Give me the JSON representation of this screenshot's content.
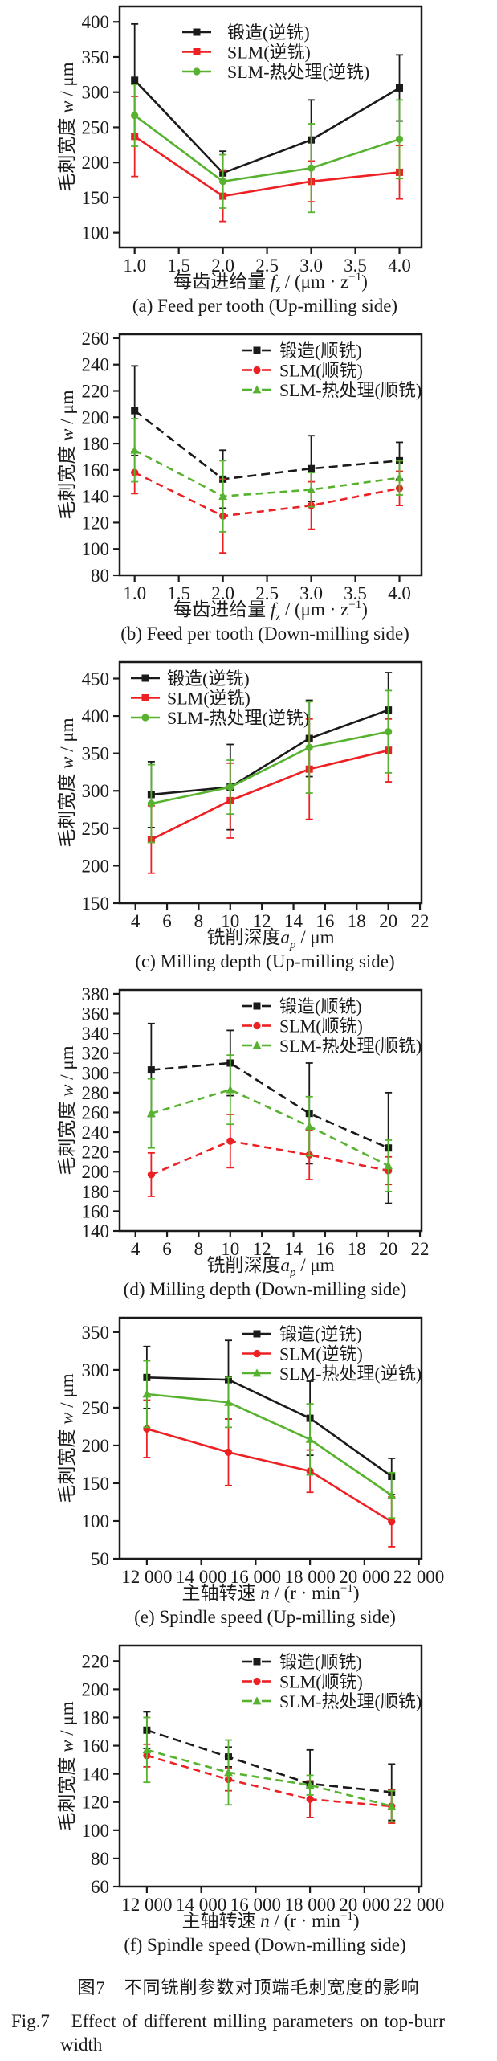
{
  "figure": {
    "caption_zh": "图7　不同铣削参数对顶端毛刺宽度的影响",
    "caption_en_line1": "Fig.7　Effect of different milling parameters on top-burr",
    "caption_en_line2": "width"
  },
  "ylabel_parts": [
    "毛刺宽度 ",
    {
      "i": "w"
    },
    " / μm"
  ],
  "colors": {
    "forged": "#1a1a1a",
    "slm": "#ed2024",
    "slm_ht": "#57b32f"
  },
  "chart_data": [
    {
      "id": "a",
      "type": "line",
      "caption": "(a) Feed per tooth (Up-milling side)",
      "xlabel_parts": [
        "每齿进给量 ",
        {
          "i": "f"
        },
        {
          "sub": "z"
        },
        " / (μm · z",
        {
          "sup": "−1"
        },
        ")"
      ],
      "x_ticks": {
        "values": [
          1.0,
          1.5,
          2.0,
          2.5,
          3.0,
          3.5,
          4.0
        ],
        "labels": [
          "1.0",
          "1.5",
          "2.0",
          "2.5",
          "3.0",
          "3.5",
          "4.0"
        ]
      },
      "y_ticks": {
        "values": [
          100,
          150,
          200,
          250,
          300,
          350,
          400
        ],
        "labels": [
          "100",
          "150",
          "200",
          "250",
          "300",
          "350",
          "400"
        ]
      },
      "xlim": [
        0.83,
        4.25
      ],
      "ylim": [
        79,
        422
      ],
      "dashed": false,
      "legend_pos": "upper-center",
      "x": [
        1.0,
        2.0,
        3.0,
        4.0
      ],
      "series": [
        {
          "key": "forged",
          "name": "锻造(逆铣)",
          "color": "#1a1a1a",
          "marker": "square",
          "y": [
            317,
            185,
            232,
            306
          ],
          "err": [
            80,
            31,
            57,
            47
          ]
        },
        {
          "key": "slm",
          "name": "SLM(逆铣)",
          "color": "#ed2024",
          "marker": "square",
          "y": [
            237,
            152,
            173,
            186
          ],
          "err": [
            57,
            36,
            29,
            38
          ]
        },
        {
          "key": "slm-ht",
          "name": "SLM-热处理(逆铣)",
          "color": "#57b32f",
          "marker": "circle",
          "y": [
            267,
            173,
            192,
            233
          ],
          "err": [
            44,
            38,
            63,
            56
          ]
        }
      ]
    },
    {
      "id": "b",
      "type": "line",
      "caption": "(b) Feed per tooth (Down-milling side)",
      "xlabel_parts": [
        "每齿进给量 ",
        {
          "i": "f"
        },
        {
          "sub": "z"
        },
        " / (μm · z",
        {
          "sup": "−1"
        },
        ")"
      ],
      "x_ticks": {
        "values": [
          1.0,
          1.5,
          2.0,
          2.5,
          3.0,
          3.5,
          4.0
        ],
        "labels": [
          "1.0",
          "1.5",
          "2.0",
          "2.5",
          "3.0",
          "3.5",
          "4.0"
        ]
      },
      "y_ticks": {
        "values": [
          80,
          100,
          120,
          140,
          160,
          180,
          200,
          220,
          240,
          260
        ],
        "labels": [
          "80",
          "100",
          "120",
          "140",
          "160",
          "180",
          "200",
          "220",
          "240",
          "260"
        ]
      },
      "xlim": [
        0.83,
        4.25
      ],
      "ylim": [
        80,
        263
      ],
      "dashed": true,
      "legend_pos": "upper-right",
      "x": [
        1.0,
        2.0,
        3.0,
        4.0
      ],
      "series": [
        {
          "key": "forged",
          "name": "锻造(顺铣)",
          "color": "#1a1a1a",
          "marker": "square",
          "y": [
            205,
            153,
            161,
            167
          ],
          "err": [
            34,
            22,
            25,
            14
          ]
        },
        {
          "key": "slm",
          "name": "SLM(顺铣)",
          "color": "#ed2024",
          "marker": "circle",
          "y": [
            158,
            125,
            133,
            146
          ],
          "err": [
            16,
            28,
            18,
            13
          ]
        },
        {
          "key": "slm-ht",
          "name": "SLM-热处理(顺铣)",
          "color": "#57b32f",
          "marker": "triangle",
          "y": [
            175,
            140,
            145,
            154
          ],
          "err": [
            24,
            27,
            13,
            13
          ]
        }
      ]
    },
    {
      "id": "c",
      "type": "line",
      "caption": "(c) Milling depth (Up-milling side)",
      "xlabel_parts": [
        "铣削深度",
        {
          "i": "a"
        },
        {
          "sub": "p"
        },
        " / μm"
      ],
      "x_ticks": {
        "values": [
          4,
          6,
          8,
          10,
          12,
          14,
          16,
          18,
          20,
          22
        ],
        "labels": [
          "4",
          "6",
          "8",
          "10",
          "12",
          "14",
          "16",
          "18",
          "20",
          "22"
        ]
      },
      "y_ticks": {
        "values": [
          150,
          200,
          250,
          300,
          350,
          400,
          450
        ],
        "labels": [
          "150",
          "200",
          "250",
          "300",
          "350",
          "400",
          "450"
        ]
      },
      "xlim": [
        3.0,
        22.1
      ],
      "ylim": [
        150,
        472
      ],
      "dashed": false,
      "legend_pos": "upper-left",
      "x": [
        5,
        10,
        15,
        20
      ],
      "series": [
        {
          "key": "forged",
          "name": "锻造(逆铣)",
          "color": "#1a1a1a",
          "marker": "square",
          "y": [
            295,
            305,
            370,
            408
          ],
          "err": [
            44,
            57,
            51,
            50
          ]
        },
        {
          "key": "slm",
          "name": "SLM(逆铣)",
          "color": "#ed2024",
          "marker": "square",
          "y": [
            235,
            287,
            329,
            354
          ],
          "err": [
            45,
            50,
            67,
            42
          ]
        },
        {
          "key": "slm-ht",
          "name": "SLM-热处理(逆铣)",
          "color": "#57b32f",
          "marker": "circle",
          "y": [
            283,
            305,
            358,
            379
          ],
          "err": [
            52,
            36,
            61,
            55
          ]
        }
      ]
    },
    {
      "id": "d",
      "type": "line",
      "caption": "(d) Milling depth (Down-milling side)",
      "xlabel_parts": [
        "铣削深度",
        {
          "i": "a"
        },
        {
          "sub": "p"
        },
        " / μm"
      ],
      "x_ticks": {
        "values": [
          4,
          6,
          8,
          10,
          12,
          14,
          16,
          18,
          20,
          22
        ],
        "labels": [
          "4",
          "6",
          "8",
          "10",
          "12",
          "14",
          "16",
          "18",
          "20",
          "22"
        ]
      },
      "y_ticks": {
        "values": [
          140,
          160,
          180,
          200,
          220,
          240,
          260,
          280,
          300,
          320,
          340,
          360,
          380
        ],
        "labels": [
          "140",
          "160",
          "180",
          "200",
          "220",
          "240",
          "260",
          "280",
          "300",
          "320",
          "340",
          "360",
          "380"
        ]
      },
      "xlim": [
        3.0,
        22.1
      ],
      "ylim": [
        140,
        384
      ],
      "dashed": true,
      "legend_pos": "upper-right",
      "x": [
        5,
        10,
        15,
        20
      ],
      "series": [
        {
          "key": "forged",
          "name": "锻造(顺铣)",
          "color": "#1a1a1a",
          "marker": "square",
          "y": [
            303,
            310,
            259,
            224
          ],
          "err": [
            47,
            33,
            51,
            56
          ]
        },
        {
          "key": "slm",
          "name": "SLM(顺铣)",
          "color": "#ed2024",
          "marker": "circle",
          "y": [
            197,
            231,
            217,
            201
          ],
          "err": [
            22,
            27,
            25,
            14
          ]
        },
        {
          "key": "slm-ht",
          "name": "SLM-热处理(顺铣)",
          "color": "#57b32f",
          "marker": "triangle",
          "y": [
            259,
            283,
            246,
            206
          ],
          "err": [
            35,
            35,
            30,
            26
          ]
        }
      ]
    },
    {
      "id": "e",
      "type": "line",
      "caption": "(e) Spindle speed (Up-milling side)",
      "xlabel_parts": [
        "主轴转速 ",
        {
          "i": "n"
        },
        " / (r · min",
        {
          "sup": "−1"
        },
        ")"
      ],
      "x_ticks": {
        "values": [
          12000,
          14000,
          16000,
          18000,
          20000,
          22000
        ],
        "labels": [
          "12 000",
          "14 000",
          "16 000",
          "18 000",
          "20 000",
          "22 000"
        ]
      },
      "y_ticks": {
        "values": [
          50,
          100,
          150,
          200,
          250,
          300,
          350
        ],
        "labels": [
          "50",
          "100",
          "150",
          "200",
          "250",
          "300",
          "350"
        ]
      },
      "xlim": [
        11000,
        22100
      ],
      "ylim": [
        50,
        369
      ],
      "dashed": false,
      "legend_pos": "upper-right",
      "x": [
        12000,
        15000,
        18000,
        21000
      ],
      "series": [
        {
          "key": "forged",
          "name": "锻造(逆铣)",
          "color": "#1a1a1a",
          "marker": "square",
          "y": [
            290,
            287,
            236,
            159
          ],
          "err": [
            41,
            52,
            49,
            24
          ]
        },
        {
          "key": "slm",
          "name": "SLM(逆铣)",
          "color": "#ed2024",
          "marker": "circle",
          "y": [
            222,
            191,
            166,
            99
          ],
          "err": [
            38,
            44,
            28,
            33
          ]
        },
        {
          "key": "slm-ht",
          "name": "SLM-热处理(逆铣)",
          "color": "#57b32f",
          "marker": "triangle",
          "y": [
            268,
            257,
            208,
            134
          ],
          "err": [
            44,
            33,
            47,
            30
          ]
        }
      ]
    },
    {
      "id": "f",
      "type": "line",
      "caption": "(f) Spindle speed (Down-milling side)",
      "xlabel_parts": [
        "主轴转速 ",
        {
          "i": "n"
        },
        " / (r · min",
        {
          "sup": "−1"
        },
        ")"
      ],
      "x_ticks": {
        "values": [
          12000,
          14000,
          16000,
          18000,
          20000,
          22000
        ],
        "labels": [
          "12 000",
          "14 000",
          "16 000",
          "18 000",
          "20 000",
          "22 000"
        ]
      },
      "y_ticks": {
        "values": [
          60,
          80,
          100,
          120,
          140,
          160,
          180,
          200,
          220
        ],
        "labels": [
          "60",
          "80",
          "100",
          "120",
          "140",
          "160",
          "180",
          "200",
          "220"
        ]
      },
      "xlim": [
        11000,
        22100
      ],
      "ylim": [
        60,
        231
      ],
      "dashed": true,
      "legend_pos": "upper-right",
      "x": [
        12000,
        15000,
        18000,
        21000
      ],
      "series": [
        {
          "key": "forged",
          "name": "锻造(顺铣)",
          "color": "#1a1a1a",
          "marker": "square",
          "y": [
            171,
            152,
            133,
            127
          ],
          "err": [
            13,
            7,
            24,
            20
          ]
        },
        {
          "key": "slm",
          "name": "SLM(顺铣)",
          "color": "#ed2024",
          "marker": "circle",
          "y": [
            153,
            136,
            122,
            117
          ],
          "err": [
            8,
            8,
            13,
            12
          ]
        },
        {
          "key": "slm-ht",
          "name": "SLM-热处理(顺铣)",
          "color": "#57b32f",
          "marker": "triangle",
          "y": [
            157,
            141,
            132,
            117
          ],
          "err": [
            23,
            23,
            7,
            11
          ]
        }
      ]
    }
  ]
}
